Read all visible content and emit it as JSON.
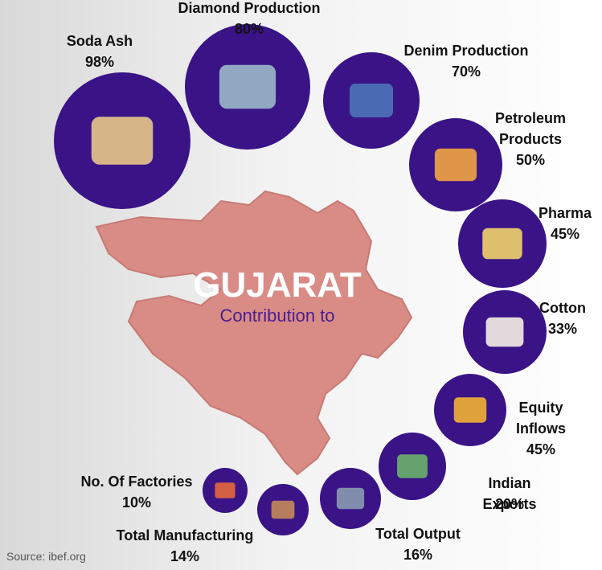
{
  "title": "GUJARAT",
  "subtitle": "Contribution to",
  "items": [
    {
      "label": "Soda Ash",
      "value": "98%"
    },
    {
      "label": "Diamond Production",
      "value": "80%"
    },
    {
      "label": "Denim Production",
      "value": "70%"
    },
    {
      "label": "Petroleum Products",
      "value": "50%"
    },
    {
      "label": "Pharma",
      "value": "45%"
    },
    {
      "label": "Cotton",
      "value": "33%"
    },
    {
      "label": "Equity Inflows",
      "value": "45%"
    },
    {
      "label": "Indian Exports",
      "value": "20%"
    },
    {
      "label": "Total Output",
      "value": "16%"
    },
    {
      "label": "Total Manufacturing",
      "value": "14%"
    },
    {
      "label": "No. Of Factories",
      "value": "10%"
    }
  ],
  "source": "Source: ibef.org"
}
